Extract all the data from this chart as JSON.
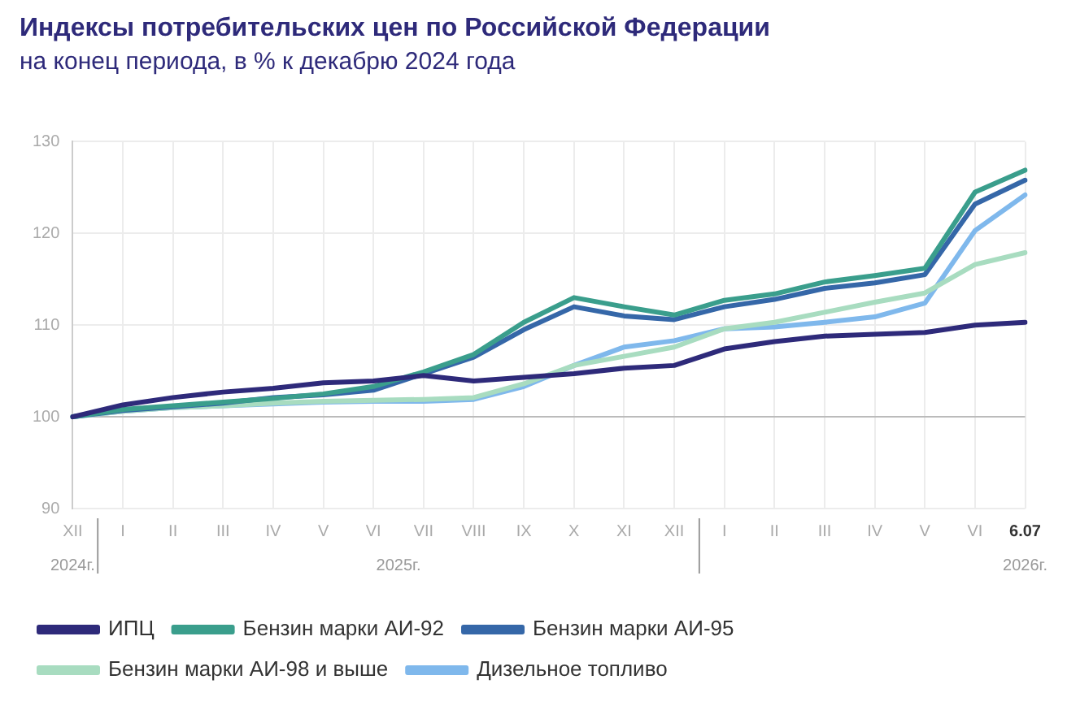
{
  "chart_data": {
    "type": "line",
    "title": "Индексы потребительских цен по Российской Федерации",
    "subtitle": "на конец периода, в % к декабрю 2024 года",
    "categories": [
      "XII",
      "I",
      "II",
      "III",
      "IV",
      "V",
      "VI",
      "VII",
      "VIII",
      "IX",
      "X",
      "XI",
      "XII",
      "I",
      "II",
      "III",
      "IV",
      "V",
      "VI",
      "6.07"
    ],
    "series": [
      {
        "name": "ИПЦ",
        "color": "#2e2a7a",
        "values": [
          100,
          101.3,
          102.1,
          102.7,
          103.1,
          103.7,
          103.9,
          104.5,
          103.9,
          104.3,
          104.7,
          105.3,
          105.6,
          107.4,
          108.2,
          108.8,
          109.0,
          109.2,
          110.0,
          110.3
        ]
      },
      {
        "name": "Бензин марки АИ-92",
        "color": "#3a9e8c",
        "values": [
          100,
          100.8,
          101.2,
          101.6,
          102.0,
          102.5,
          103.3,
          104.9,
          106.8,
          110.3,
          113.0,
          112.0,
          111.1,
          112.7,
          113.4,
          114.7,
          115.4,
          116.2,
          124.5,
          126.9
        ]
      },
      {
        "name": "Бензин марки АИ-95",
        "color": "#3567a8",
        "values": [
          100,
          100.7,
          101.1,
          101.5,
          102.1,
          102.4,
          102.9,
          104.7,
          106.5,
          109.5,
          112.0,
          111.0,
          110.6,
          112.0,
          112.8,
          114.0,
          114.6,
          115.5,
          123.2,
          125.8
        ]
      },
      {
        "name": "Бензин марки АИ-98 и выше",
        "color": "#a8dcc0",
        "values": [
          100,
          100.6,
          101.0,
          101.2,
          101.5,
          101.7,
          101.8,
          101.9,
          102.1,
          103.6,
          105.6,
          106.6,
          107.6,
          109.6,
          110.3,
          111.4,
          112.5,
          113.5,
          116.6,
          117.9
        ]
      },
      {
        "name": "Дизельное топливо",
        "color": "#7fb8ec",
        "values": [
          100,
          100.6,
          101.0,
          101.2,
          101.4,
          101.6,
          101.7,
          101.7,
          101.9,
          103.3,
          105.6,
          107.6,
          108.3,
          109.6,
          109.8,
          110.3,
          110.9,
          112.4,
          120.3,
          124.2
        ]
      }
    ],
    "ylim": [
      90,
      130
    ],
    "yticks": [
      90,
      100,
      110,
      120,
      130
    ],
    "grid": true,
    "legend": "bottom",
    "marker": "none",
    "line_style": "solid",
    "ref_lines": [
      {
        "axis": "y",
        "value": 100,
        "color": "#bbbbbb"
      }
    ],
    "annotations": [
      "2024г.",
      "2025г.",
      "2026г."
    ]
  }
}
